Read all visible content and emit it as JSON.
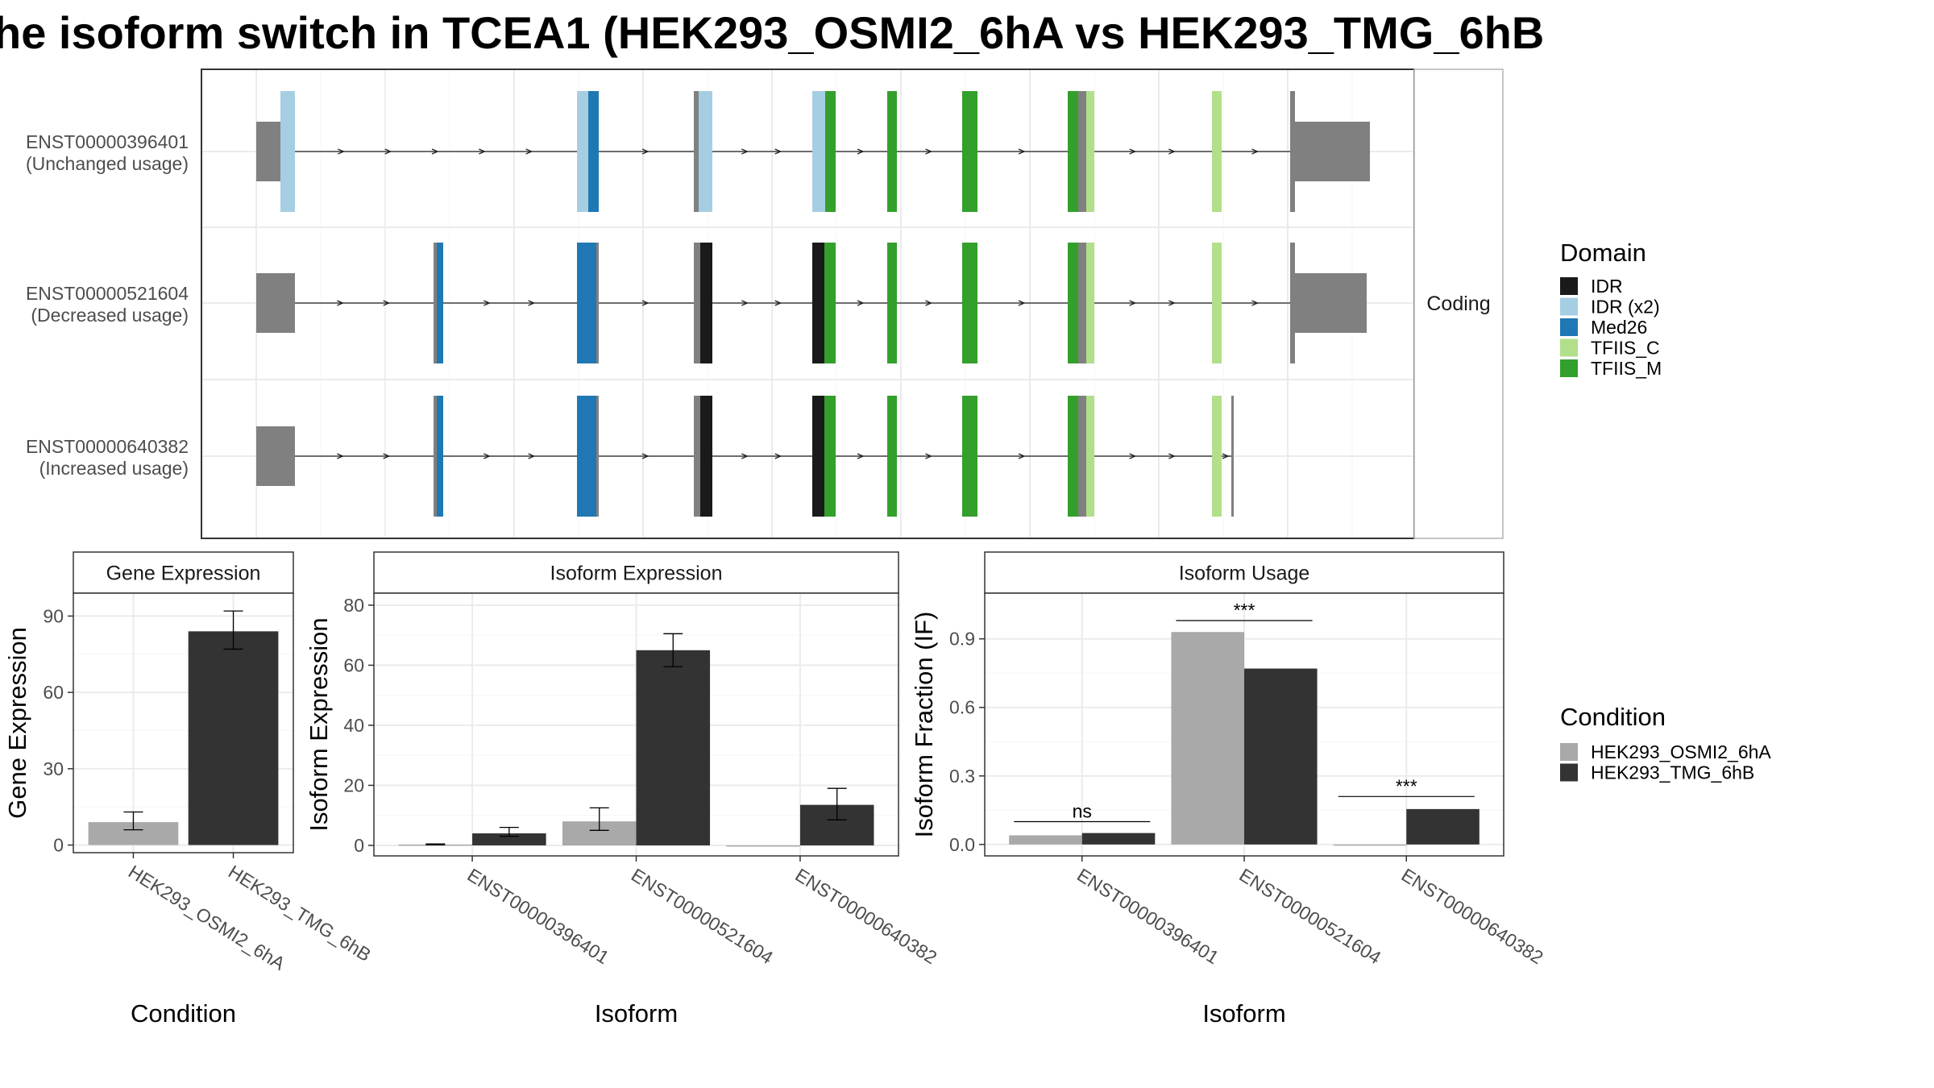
{
  "title": "he isoform switch in TCEA1 (HEK293_OSMI2_6hA vs HEK293_TMG_6hB",
  "colors": {
    "domains": {
      "IDR": "#1a1a1a",
      "IDR (x2)": "#a6cee3",
      "Med26": "#1f78b4",
      "TFIIS_C": "#b2df8a",
      "TFIIS_M": "#33a02c"
    },
    "conditions": [
      "#a9a9a9",
      "#333333"
    ],
    "exon": "#808080"
  },
  "chart_data": [
    {
      "type": "isoform_structure",
      "facet_label": "Coding",
      "isoforms": [
        {
          "id": "ENST00000396401",
          "usage": "(Unchanged usage)",
          "exons": [
            [
              0,
              30
            ],
            [
              30,
              48
            ],
            [
              398,
              412
            ],
            [
              412,
              425
            ],
            [
              543,
              549
            ],
            [
              549,
              566
            ],
            [
              690,
              706
            ],
            [
              706,
              719
            ],
            [
              783,
              795
            ],
            [
              876,
              895
            ],
            [
              1007,
              1020
            ],
            [
              1020,
              1030
            ],
            [
              1030,
              1040
            ],
            [
              1186,
              1198
            ],
            [
              1283,
              1289
            ],
            [
              1289,
              1382
            ]
          ],
          "coding": [
            [
              30,
              48
            ],
            [
              398,
              425
            ],
            [
              543,
              566
            ],
            [
              690,
              719
            ],
            [
              783,
              795
            ],
            [
              876,
              895
            ],
            [
              1007,
              1040
            ],
            [
              1186,
              1198
            ],
            [
              1283,
              1289
            ]
          ],
          "segments": [
            {
              "start": 30,
              "end": 48,
              "domain": "IDR (x2)"
            },
            {
              "start": 398,
              "end": 412,
              "domain": "IDR (x2)"
            },
            {
              "start": 412,
              "end": 425,
              "domain": "Med26"
            },
            {
              "start": 549,
              "end": 566,
              "domain": "IDR (x2)"
            },
            {
              "start": 690,
              "end": 706,
              "domain": "IDR (x2)"
            },
            {
              "start": 706,
              "end": 719,
              "domain": "TFIIS_M"
            },
            {
              "start": 783,
              "end": 795,
              "domain": "TFIIS_M"
            },
            {
              "start": 876,
              "end": 895,
              "domain": "TFIIS_M"
            },
            {
              "start": 1007,
              "end": 1020,
              "domain": "TFIIS_M"
            },
            {
              "start": 1030,
              "end": 1040,
              "domain": "TFIIS_C"
            },
            {
              "start": 1186,
              "end": 1198,
              "domain": "TFIIS_C"
            }
          ]
        },
        {
          "id": "ENST00000521604",
          "usage": "(Decreased usage)",
          "exons": [
            [
              0,
              48
            ],
            [
              220,
              232
            ],
            [
              398,
              425
            ],
            [
              543,
              566
            ],
            [
              690,
              719
            ],
            [
              783,
              795
            ],
            [
              876,
              895
            ],
            [
              1007,
              1040
            ],
            [
              1186,
              1198
            ],
            [
              1283,
              1289
            ],
            [
              1289,
              1378
            ]
          ],
          "coding": [
            [
              30,
              48
            ],
            [
              220,
              232
            ],
            [
              398,
              425
            ],
            [
              543,
              566
            ],
            [
              690,
              719
            ],
            [
              783,
              795
            ],
            [
              876,
              895
            ],
            [
              1007,
              1040
            ],
            [
              1186,
              1198
            ],
            [
              1283,
              1289
            ]
          ],
          "segments": [
            {
              "start": 224,
              "end": 232,
              "domain": "Med26"
            },
            {
              "start": 398,
              "end": 422,
              "domain": "Med26"
            },
            {
              "start": 551,
              "end": 566,
              "domain": "IDR"
            },
            {
              "start": 690,
              "end": 705,
              "domain": "IDR"
            },
            {
              "start": 705,
              "end": 719,
              "domain": "TFIIS_M"
            },
            {
              "start": 783,
              "end": 795,
              "domain": "TFIIS_M"
            },
            {
              "start": 876,
              "end": 895,
              "domain": "TFIIS_M"
            },
            {
              "start": 1007,
              "end": 1020,
              "domain": "TFIIS_M"
            },
            {
              "start": 1030,
              "end": 1040,
              "domain": "TFIIS_C"
            },
            {
              "start": 1186,
              "end": 1198,
              "domain": "TFIIS_C"
            }
          ]
        },
        {
          "id": "ENST00000640382",
          "usage": "(Increased usage)",
          "exons": [
            [
              0,
              48
            ],
            [
              220,
              232
            ],
            [
              398,
              425
            ],
            [
              543,
              566
            ],
            [
              690,
              719
            ],
            [
              783,
              795
            ],
            [
              876,
              895
            ],
            [
              1007,
              1040
            ],
            [
              1186,
              1198
            ],
            [
              1210,
              1213
            ]
          ],
          "coding": [
            [
              30,
              48
            ],
            [
              220,
              232
            ],
            [
              398,
              425
            ],
            [
              543,
              566
            ],
            [
              690,
              719
            ],
            [
              783,
              795
            ],
            [
              876,
              895
            ],
            [
              1007,
              1040
            ],
            [
              1186,
              1198
            ],
            [
              1210,
              1213
            ]
          ],
          "segments": [
            {
              "start": 224,
              "end": 232,
              "domain": "Med26"
            },
            {
              "start": 398,
              "end": 422,
              "domain": "Med26"
            },
            {
              "start": 551,
              "end": 566,
              "domain": "IDR"
            },
            {
              "start": 690,
              "end": 705,
              "domain": "IDR"
            },
            {
              "start": 705,
              "end": 719,
              "domain": "TFIIS_M"
            },
            {
              "start": 783,
              "end": 795,
              "domain": "TFIIS_M"
            },
            {
              "start": 876,
              "end": 895,
              "domain": "TFIIS_M"
            },
            {
              "start": 1007,
              "end": 1020,
              "domain": "TFIIS_M"
            },
            {
              "start": 1030,
              "end": 1040,
              "domain": "TFIIS_C"
            },
            {
              "start": 1186,
              "end": 1198,
              "domain": "TFIIS_C"
            }
          ]
        }
      ]
    },
    {
      "type": "bar",
      "panel_title": "Gene Expression",
      "ylabel": "Gene Expression",
      "xlabel": "Condition",
      "ylim": [
        -3,
        99
      ],
      "yticks": [
        0,
        30,
        60,
        90
      ],
      "categories": [
        "HEK293_OSMI2_6hA",
        "HEK293_TMG_6hB"
      ],
      "values": [
        9,
        84
      ],
      "error_low": [
        6,
        77
      ],
      "error_high": [
        13,
        92
      ]
    },
    {
      "type": "bar",
      "panel_title": "Isoform Expression",
      "ylabel": "Isoform Expression",
      "xlabel": "Isoform",
      "ylim": [
        -3.5,
        84
      ],
      "yticks": [
        0,
        20,
        40,
        60,
        80
      ],
      "categories": [
        "ENST00000396401",
        "ENST00000521604",
        "ENST00000640382"
      ],
      "series": [
        {
          "name": "HEK293_OSMI2_6hA",
          "values": [
            0.3,
            8,
            0
          ],
          "error_low": [
            0.2,
            5,
            0
          ],
          "error_high": [
            0.5,
            12.5,
            0
          ]
        },
        {
          "name": "HEK293_TMG_6hB",
          "values": [
            4,
            65,
            13.5
          ],
          "error_low": [
            3,
            59.5,
            8.5
          ],
          "error_high": [
            6,
            70.5,
            19
          ]
        }
      ]
    },
    {
      "type": "bar",
      "panel_title": "Isoform Usage",
      "ylabel": "Isoform Fraction (IF)",
      "xlabel": "Isoform",
      "ylim": [
        -0.05,
        1.1
      ],
      "yticks": [
        "0.0",
        "0.3",
        "0.6",
        "0.9"
      ],
      "categories": [
        "ENST00000396401",
        "ENST00000521604",
        "ENST00000640382"
      ],
      "series": [
        {
          "name": "HEK293_OSMI2_6hA",
          "values": [
            0.04,
            0.93,
            0
          ]
        },
        {
          "name": "HEK293_TMG_6hB",
          "values": [
            0.05,
            0.77,
            0.155
          ]
        }
      ],
      "significance": [
        {
          "label": "ns",
          "y": 0.1
        },
        {
          "label": "***",
          "y": 0.98
        },
        {
          "label": "***",
          "y": 0.21
        }
      ]
    }
  ],
  "legend_domain": {
    "title": "Domain",
    "items": [
      "IDR",
      "IDR (x2)",
      "Med26",
      "TFIIS_C",
      "TFIIS_M"
    ]
  },
  "legend_condition": {
    "title": "Condition",
    "items": [
      "HEK293_OSMI2_6hA",
      "HEK293_TMG_6hB"
    ]
  }
}
